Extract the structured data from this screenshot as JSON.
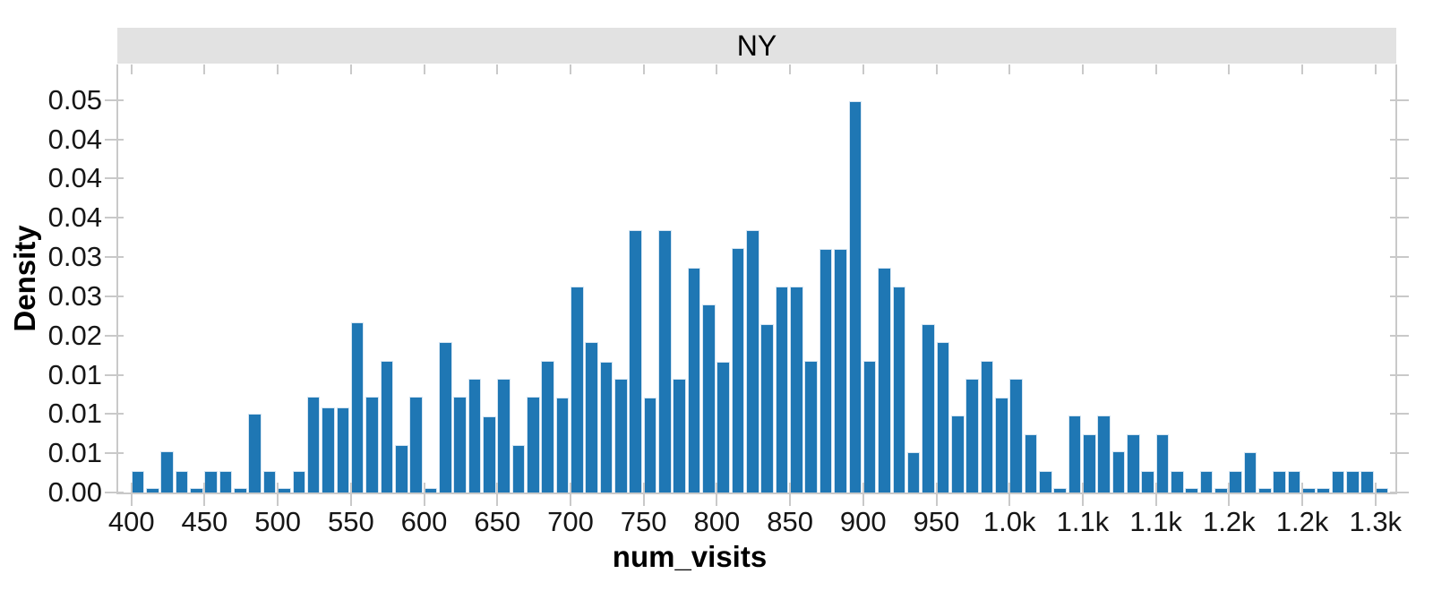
{
  "facet": {
    "title": "NY",
    "strip_bg": "#e2e2e2"
  },
  "chart_data": {
    "type": "bar",
    "subtype": "histogram",
    "title": "NY",
    "xlabel": "num_visits",
    "ylabel": "Density",
    "grid": false,
    "legend": false,
    "bar_color": "#1f77b4",
    "bar_stroke": "#d5e5f2",
    "axis_color": "#c9c9c9",
    "tick_label_color": "#161616",
    "title_color": "#000000",
    "x_domain": [
      391,
      1263.6
    ],
    "y_domain": [
      0,
      0.05453
    ],
    "x_ticks": {
      "values": [
        400,
        450,
        500,
        550,
        600,
        650,
        700,
        750,
        800,
        850,
        900,
        950,
        1000,
        1050,
        1100,
        1150,
        1200,
        1250
      ],
      "labels": [
        "400",
        "450",
        "500",
        "550",
        "600",
        "650",
        "700",
        "750",
        "800",
        "850",
        "900",
        "950",
        "1.0k",
        "1.1k",
        "1.1k",
        "1.2k",
        "1.2k",
        "1.3k"
      ]
    },
    "y_ticks": {
      "values": [
        0.0,
        0.005,
        0.01,
        0.015,
        0.02,
        0.025,
        0.03,
        0.035,
        0.04,
        0.045,
        0.05
      ],
      "labels": [
        "0.00",
        "0.01",
        "0.01",
        "0.01",
        "0.02",
        "0.03",
        "0.03",
        "0.04",
        "0.04",
        "0.04",
        "0.05"
      ]
    },
    "bin_start": 400,
    "bin_width": 10,
    "densities": [
      0.0028,
      0.0006,
      0.0053,
      0.0028,
      0.0006,
      0.0028,
      0.0028,
      0.0006,
      0.0101,
      0.0028,
      0.0006,
      0.0028,
      0.0122,
      0.0108,
      0.0108,
      0.0217,
      0.0122,
      0.0168,
      0.0061,
      0.0122,
      0.0006,
      0.0192,
      0.0122,
      0.0145,
      0.0097,
      0.0145,
      0.0061,
      0.0122,
      0.0168,
      0.0121,
      0.0262,
      0.0192,
      0.0167,
      0.0145,
      0.0334,
      0.0121,
      0.0334,
      0.0145,
      0.0286,
      0.024,
      0.0167,
      0.0311,
      0.0334,
      0.0215,
      0.0262,
      0.0262,
      0.0168,
      0.031,
      0.031,
      0.0499,
      0.0168,
      0.0286,
      0.0262,
      0.0051,
      0.0215,
      0.0192,
      0.0098,
      0.0145,
      0.0168,
      0.0121,
      0.0145,
      0.0074,
      0.0027,
      0.0006,
      0.0098,
      0.0074,
      0.0098,
      0.0052,
      0.0074,
      0.0027,
      0.0074,
      0.0027,
      0.0006,
      0.0027,
      0.0006,
      0.0027,
      0.0051,
      0.0006,
      0.0027,
      0.0027,
      0.0006,
      0.0006,
      0.0027,
      0.0027,
      0.0027,
      0.0006
    ]
  }
}
